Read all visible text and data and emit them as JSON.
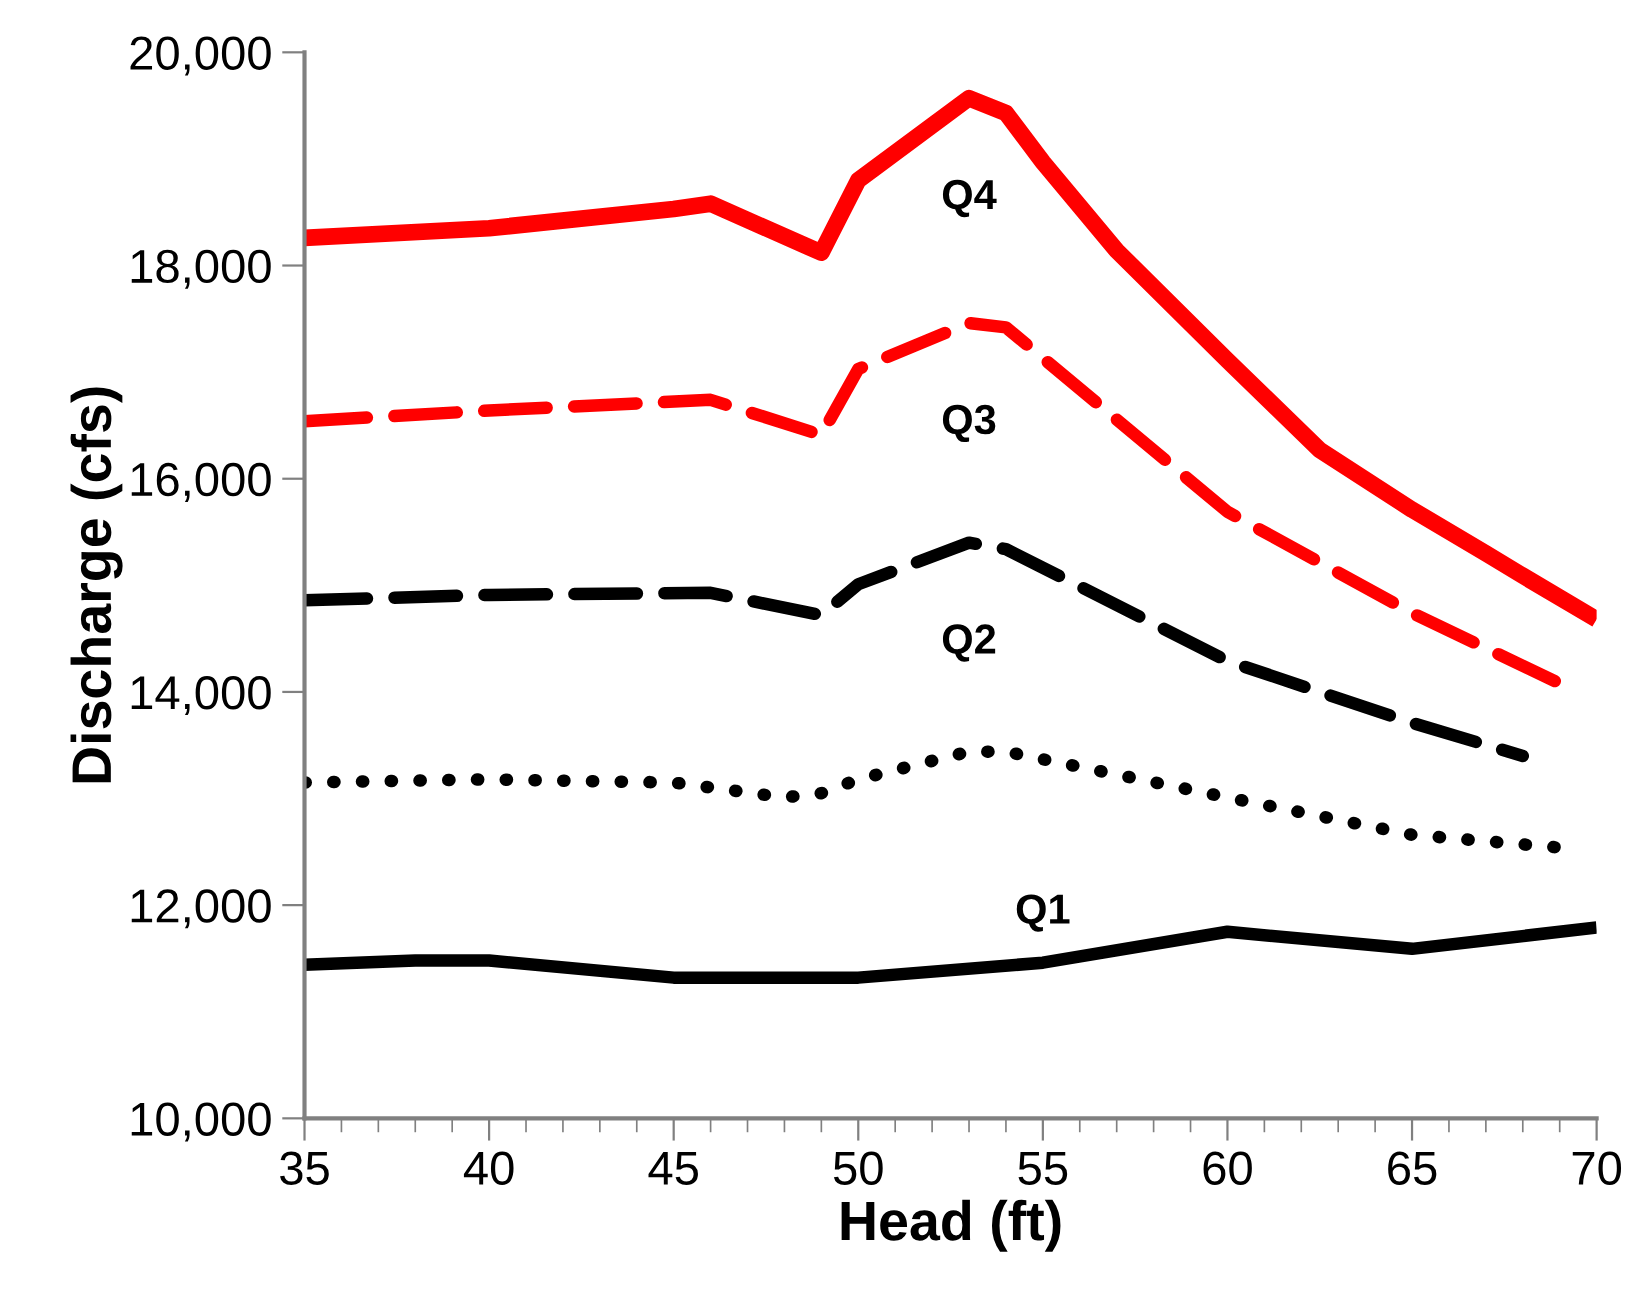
{
  "chart_data": {
    "type": "line",
    "xlabel": "Head (ft)",
    "ylabel": "Discharge (cfs)",
    "xlim": [
      35,
      70
    ],
    "xticks": [
      35,
      40,
      45,
      50,
      55,
      60,
      65,
      70
    ],
    "ylim": [
      10000,
      20000
    ],
    "yticks": [
      {
        "value": 10000,
        "label": "10,000"
      },
      {
        "value": 12000,
        "label": "12,000"
      },
      {
        "value": 14000,
        "label": "14,000"
      },
      {
        "value": 16000,
        "label": "16,000"
      },
      {
        "value": 18000,
        "label": "18,000"
      },
      {
        "value": 20000,
        "label": "20,000"
      }
    ],
    "grid": false,
    "legend": false,
    "marker": "none",
    "series": [
      {
        "name": "Q4",
        "color": "#ff0000",
        "line_style": "solid",
        "x": [
          35,
          40,
          45,
          46,
          49,
          50,
          53,
          54,
          55,
          57,
          60,
          62.5,
          65,
          67,
          68,
          70
        ],
        "values": [
          18260,
          18350,
          18530,
          18580,
          18120,
          18800,
          19570,
          19430,
          18970,
          18140,
          17110,
          16270,
          15710,
          15300,
          15090,
          14680
        ]
      },
      {
        "name": "Q3",
        "color": "#ff0000",
        "line_style": "dashed",
        "x": [
          35,
          40,
          46,
          49,
          50,
          53,
          54,
          60,
          65,
          69
        ],
        "values": [
          16540,
          16640,
          16740,
          16410,
          17030,
          17460,
          17420,
          15690,
          14740,
          14080
        ]
      },
      {
        "name": "Q2",
        "color": "#000000",
        "line_style": "dashed",
        "x": [
          35,
          40,
          46,
          49,
          50,
          53,
          54,
          60,
          65,
          68
        ],
        "values": [
          14860,
          14910,
          14930,
          14720,
          15010,
          15400,
          15340,
          14290,
          13710,
          13400
        ]
      },
      {
        "color": "#000000",
        "line_style": "dotted",
        "x": [
          35,
          40,
          45,
          48,
          49,
          50,
          53,
          54,
          60,
          65,
          69
        ],
        "values": [
          13150,
          13180,
          13150,
          13010,
          13050,
          13180,
          13440,
          13440,
          13010,
          12660,
          12540
        ]
      },
      {
        "name": "Q1",
        "color": "#000000",
        "line_style": "solid",
        "x": [
          35,
          38,
          40,
          45,
          50,
          55,
          60,
          65,
          70
        ],
        "values": [
          11440,
          11480,
          11480,
          11320,
          11320,
          11460,
          11750,
          11590,
          11790
        ]
      }
    ]
  }
}
